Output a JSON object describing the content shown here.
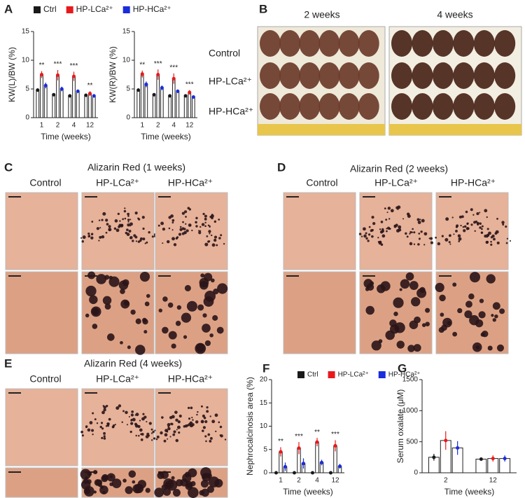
{
  "panel_labels": [
    "A",
    "B",
    "C",
    "D",
    "E",
    "F",
    "G"
  ],
  "photo_panels": {
    "B": {
      "columns": [
        "2 weeks",
        "4 weeks"
      ],
      "rows": [
        "Control",
        "HP-LCa²⁺",
        "HP-HCa²⁺"
      ]
    },
    "C": {
      "title": "Alizarin Red (1 weeks)",
      "columns": [
        "Control",
        "HP-LCa²⁺",
        "HP-HCa²⁺"
      ]
    },
    "D": {
      "title": "Alizarin Red (2 weeks)",
      "columns": [
        "Control",
        "HP-LCa²⁺",
        "HP-HCa²⁺"
      ]
    },
    "E": {
      "title": "Alizarin Red (4 weeks)",
      "columns": [
        "Control",
        "HP-LCa²⁺",
        "HP-HCa²⁺"
      ]
    }
  },
  "chart_data": [
    {
      "type": "bar",
      "y_label": "KW(L)/BW (%)",
      "x_label": "Time (weeks)",
      "categories": [
        "1",
        "2",
        "4",
        "12"
      ],
      "ylim": [
        0,
        15
      ],
      "yticks": [
        0,
        5,
        10,
        15
      ],
      "series": [
        {
          "name": "Ctrl",
          "color": "#1a1a1a",
          "values": [
            4.8,
            4.0,
            3.8,
            3.9
          ],
          "errors": [
            0.3,
            0.2,
            0.2,
            0.2
          ]
        },
        {
          "name": "HP-LCa²⁺",
          "color": "#e8191c",
          "values": [
            7.5,
            7.4,
            7.2,
            4.2
          ],
          "errors": [
            0.6,
            0.9,
            0.8,
            0.4
          ]
        },
        {
          "name": "HP-HCa²⁺",
          "color": "#1a2cdb",
          "values": [
            5.6,
            5.0,
            4.6,
            3.8
          ],
          "errors": [
            0.5,
            0.4,
            0.3,
            0.3
          ]
        }
      ],
      "annotations": [
        "**",
        "***",
        "***",
        "**"
      ]
    },
    {
      "type": "bar",
      "y_label": "KW(R)/BW (%)",
      "x_label": "Time (weeks)",
      "categories": [
        "1",
        "2",
        "4",
        "12"
      ],
      "ylim": [
        0,
        15
      ],
      "yticks": [
        0,
        5,
        10,
        15
      ],
      "series": [
        {
          "color": "#1a1a1a",
          "values": [
            4.8,
            4.0,
            3.8,
            3.8
          ],
          "errors": [
            0.3,
            0.2,
            0.2,
            0.2
          ]
        },
        {
          "color": "#e8191c",
          "values": [
            7.6,
            7.5,
            6.8,
            4.4
          ],
          "errors": [
            0.6,
            0.9,
            0.9,
            0.4
          ]
        },
        {
          "color": "#1a2cdb",
          "values": [
            5.8,
            5.2,
            4.6,
            3.6
          ],
          "errors": [
            0.5,
            0.4,
            0.3,
            0.3
          ]
        }
      ],
      "annotations": [
        "**",
        "***",
        "***",
        "***"
      ]
    },
    {
      "type": "bar",
      "y_label": "Nephrocalcinosis area (%)",
      "x_label": "Time (weeks)",
      "categories": [
        "1",
        "2",
        "4",
        "12"
      ],
      "ylim": [
        0,
        20
      ],
      "yticks": [
        0,
        5,
        10,
        15,
        20
      ],
      "series": [
        {
          "name": "Ctrl",
          "color": "#1a1a1a",
          "values": [
            0,
            0,
            0,
            0
          ],
          "errors": [
            0,
            0,
            0,
            0
          ]
        },
        {
          "name": "HP-LCa²⁺",
          "color": "#e8191c",
          "values": [
            4.5,
            5.3,
            6.6,
            5.8
          ],
          "errors": [
            1.0,
            1.3,
            0.9,
            1.2
          ]
        },
        {
          "name": "HP-HCa²⁺",
          "color": "#1a2cdb",
          "values": [
            1.3,
            2.0,
            2.2,
            1.4
          ],
          "errors": [
            0.9,
            1.1,
            0.6,
            0.5
          ]
        }
      ],
      "annotations": [
        "**",
        "***",
        "**",
        "***"
      ]
    },
    {
      "type": "bar",
      "y_label": "Serum oxalate (μM)",
      "x_label": "Time (weeks)",
      "categories": [
        "2",
        "12"
      ],
      "ylim": [
        0,
        1500
      ],
      "yticks": [
        0,
        500,
        1000,
        1500
      ],
      "series": [
        {
          "color": "#1a1a1a",
          "values": [
            250,
            220
          ],
          "errors": [
            55,
            25
          ]
        },
        {
          "color": "#e8191c",
          "values": [
            520,
            230
          ],
          "errors": [
            150,
            50
          ]
        },
        {
          "color": "#1a2cdb",
          "values": [
            400,
            230
          ],
          "errors": [
            110,
            50
          ]
        }
      ]
    }
  ]
}
